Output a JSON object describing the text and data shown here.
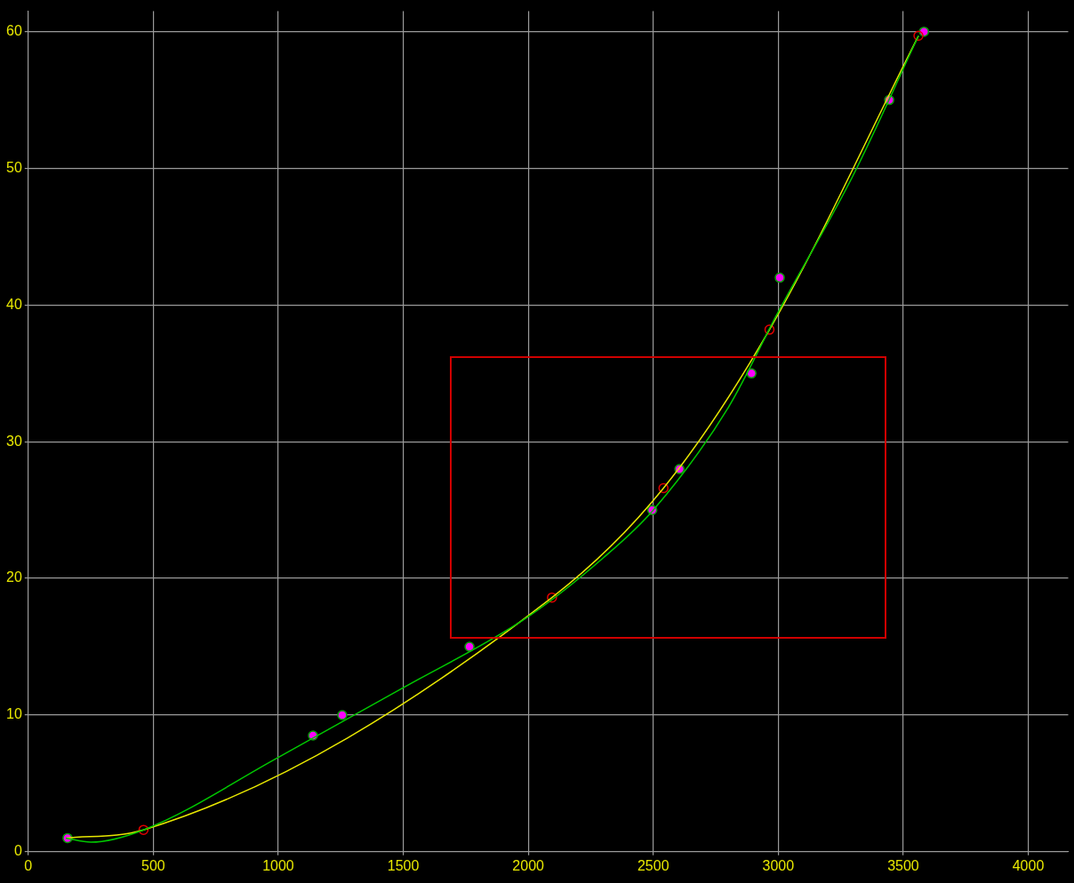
{
  "chart_data": {
    "type": "scatter",
    "xlim": [
      0,
      4160
    ],
    "ylim": [
      0,
      61.5
    ],
    "xticks": [
      0,
      500,
      1000,
      1500,
      2000,
      2500,
      3000,
      3500,
      4000
    ],
    "yticks": [
      0,
      10,
      20,
      30,
      40,
      50,
      60
    ],
    "grid": true,
    "legend": false,
    "series": [
      {
        "type": "line",
        "color": "#00c800",
        "marker": "none",
        "x": [
          150,
          250,
          461,
          1000,
          1500,
          2000,
          2300,
          2500,
          2800,
          3000,
          3300,
          3561
        ],
        "values": [
          1,
          0.7,
          1.6,
          6.9,
          12,
          17.2,
          21.5,
          25,
          32.5,
          39.5,
          49.5,
          59.7
        ]
      },
      {
        "type": "line",
        "color": "#e8e800",
        "marker": "none",
        "x": [
          150,
          461,
          2095,
          2541,
          2965,
          3561
        ],
        "values": [
          1,
          1.6,
          18.6,
          26.6,
          38.2,
          59.7
        ]
      },
      {
        "type": "scatter",
        "color": "#e00000",
        "marker": "circle",
        "x": [
          461,
          2095,
          2541,
          2965,
          3561
        ],
        "values": [
          1.6,
          18.6,
          26.6,
          38.2,
          59.7
        ]
      },
      {
        "color": "#ff00ff",
        "marker": "circle",
        "x": [
          157,
          1139,
          1256,
          1765,
          2496,
          2605,
          2893,
          3006,
          3444,
          3583
        ],
        "values": [
          1,
          8.5,
          10,
          15,
          25,
          28,
          35,
          42,
          55,
          60
        ]
      }
    ]
  }
}
